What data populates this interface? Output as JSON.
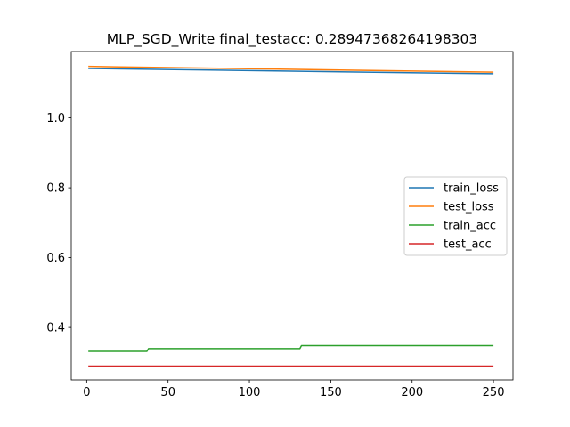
{
  "chart_data": {
    "type": "line",
    "title": "MLP_SGD_Write  final_testacc: 0.28947368264198303",
    "xlabel": "",
    "ylabel": "",
    "xlim": [
      -9.5,
      262
    ],
    "ylim": [
      0.25,
      1.19
    ],
    "xticks": [
      0,
      50,
      100,
      150,
      200,
      250
    ],
    "yticks": [
      0.4,
      0.6,
      0.8,
      1.0
    ],
    "ytick_labels": [
      "0.4",
      "0.6",
      "0.8",
      "1.0"
    ],
    "grid": false,
    "legend_position": "center-right",
    "series": [
      {
        "name": "train_loss",
        "color": "#1f77b4",
        "points": [
          [
            1,
            1.1415
          ],
          [
            250,
            1.1265
          ]
        ]
      },
      {
        "name": "test_loss",
        "color": "#ff7f0e",
        "points": [
          [
            1,
            1.1475
          ],
          [
            250,
            1.131
          ]
        ]
      },
      {
        "name": "train_acc",
        "color": "#2ca02c",
        "points": [
          [
            1,
            0.3315
          ],
          [
            37,
            0.3315
          ],
          [
            38,
            0.3395
          ],
          [
            131,
            0.3395
          ],
          [
            132,
            0.348
          ],
          [
            250,
            0.348
          ]
        ]
      },
      {
        "name": "test_acc",
        "color": "#d62728",
        "points": [
          [
            1,
            0.2895
          ],
          [
            250,
            0.2895
          ]
        ]
      }
    ]
  }
}
